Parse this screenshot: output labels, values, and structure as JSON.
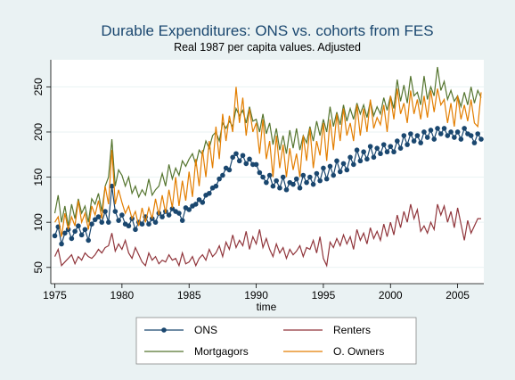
{
  "chart_data": {
    "type": "line",
    "title": "Durable Expenditures: ONS vs. cohorts from FES",
    "subtitle": "Real 1987 per capita values. Adjusted",
    "x_label": "time",
    "xlim": [
      1974.7,
      2006.95
    ],
    "xticks": [
      1975,
      1980,
      1985,
      1990,
      1995,
      2000,
      2005
    ],
    "ylim": [
      32,
      280
    ],
    "yticks": [
      50,
      100,
      150,
      200,
      250
    ],
    "grid": true,
    "legend": "bottom",
    "x": [
      1975,
      1975.25,
      1975.5,
      1975.75,
      1976,
      1976.25,
      1976.5,
      1976.75,
      1977,
      1977.25,
      1977.5,
      1977.75,
      1978,
      1978.25,
      1978.5,
      1978.75,
      1979,
      1979.25,
      1979.5,
      1979.75,
      1980,
      1980.25,
      1980.5,
      1980.75,
      1981,
      1981.25,
      1981.5,
      1981.75,
      1982,
      1982.25,
      1982.5,
      1982.75,
      1983,
      1983.25,
      1983.5,
      1983.75,
      1984,
      1984.25,
      1984.5,
      1984.75,
      1985,
      1985.25,
      1985.5,
      1985.75,
      1986,
      1986.25,
      1986.5,
      1986.75,
      1987,
      1987.25,
      1987.5,
      1987.75,
      1988,
      1988.25,
      1988.5,
      1988.75,
      1989,
      1989.25,
      1989.5,
      1989.75,
      1990,
      1990.25,
      1990.5,
      1990.75,
      1991,
      1991.25,
      1991.5,
      1991.75,
      1992,
      1992.25,
      1992.5,
      1992.75,
      1993,
      1993.25,
      1993.5,
      1993.75,
      1994,
      1994.25,
      1994.5,
      1994.75,
      1995,
      1995.25,
      1995.5,
      1995.75,
      1996,
      1996.25,
      1996.5,
      1996.75,
      1997,
      1997.25,
      1997.5,
      1997.75,
      1998,
      1998.25,
      1998.5,
      1998.75,
      1999,
      1999.25,
      1999.5,
      1999.75,
      2000,
      2000.25,
      2000.5,
      2000.75,
      2001,
      2001.25,
      2001.5,
      2001.75,
      2002,
      2002.25,
      2002.5,
      2002.75,
      2003,
      2003.25,
      2003.5,
      2003.75,
      2004,
      2004.25,
      2004.5,
      2004.75,
      2005,
      2005.25,
      2005.5,
      2005.75,
      2006,
      2006.25,
      2006.5,
      2006.75
    ],
    "series": [
      {
        "name": "ONS",
        "color": "#1a476f",
        "marker": "circle",
        "values": [
          85,
          95,
          76,
          88,
          92,
          82,
          90,
          96,
          86,
          92,
          80,
          98,
          103,
          106,
          100,
          112,
          100,
          140,
          112,
          102,
          108,
          98,
          96,
          104,
          92,
          100,
          98,
          106,
          98,
          104,
          100,
          110,
          106,
          112,
          108,
          115,
          112,
          110,
          102,
          116,
          114,
          118,
          120,
          125,
          122,
          130,
          132,
          138,
          140,
          148,
          152,
          160,
          158,
          172,
          176,
          168,
          174,
          165,
          170,
          164,
          164,
          155,
          150,
          144,
          152,
          140,
          146,
          138,
          150,
          136,
          144,
          142,
          148,
          138,
          152,
          144,
          150,
          142,
          154,
          146,
          160,
          148,
          162,
          152,
          168,
          156,
          165,
          158,
          172,
          164,
          180,
          168,
          178,
          170,
          184,
          172,
          182,
          176,
          186,
          178,
          184,
          178,
          190,
          182,
          196,
          186,
          198,
          190,
          196,
          188,
          200,
          194,
          202,
          192,
          204,
          198,
          204,
          196,
          200,
          194,
          200,
          192,
          204,
          198,
          196,
          188,
          198,
          192
        ]
      },
      {
        "name": "Renters",
        "color": "#90353b",
        "values": [
          62,
          70,
          52,
          56,
          60,
          64,
          54,
          62,
          58,
          66,
          62,
          60,
          64,
          70,
          66,
          72,
          74,
          88,
          68,
          76,
          70,
          80,
          66,
          60,
          72,
          64,
          56,
          52,
          66,
          58,
          62,
          54,
          58,
          56,
          64,
          58,
          60,
          52,
          66,
          54,
          56,
          62,
          52,
          60,
          64,
          58,
          70,
          62,
          66,
          74,
          62,
          78,
          70,
          86,
          72,
          80,
          74,
          90,
          70,
          84,
          76,
          92,
          72,
          82,
          70,
          62,
          76,
          66,
          72,
          60,
          70,
          64,
          68,
          74,
          62,
          72,
          70,
          80,
          66,
          84,
          60,
          52,
          78,
          72,
          82,
          74,
          86,
          76,
          84,
          70,
          92,
          80,
          88,
          76,
          94,
          82,
          90,
          80,
          98,
          84,
          100,
          86,
          108,
          94,
          112,
          100,
          120,
          104,
          114,
          90,
          96,
          88,
          100,
          92,
          120,
          108,
          118,
          100,
          112,
          94,
          116,
          98,
          80,
          102,
          88,
          96,
          104,
          104
        ]
      },
      {
        "name": "Mortgagors",
        "color": "#55752f",
        "values": [
          110,
          130,
          100,
          118,
          96,
          120,
          104,
          126,
          110,
          118,
          100,
          126,
          120,
          132,
          112,
          140,
          150,
          192,
          140,
          158,
          152,
          140,
          150,
          132,
          140,
          128,
          136,
          130,
          148,
          130,
          136,
          140,
          154,
          140,
          164,
          148,
          160,
          152,
          168,
          162,
          170,
          176,
          164,
          180,
          175,
          190,
          182,
          196,
          200,
          190,
          210,
          204,
          212,
          206,
          226,
          218,
          224,
          210,
          228,
          212,
          214,
          200,
          220,
          198,
          210,
          186,
          204,
          180,
          196,
          176,
          202,
          182,
          204,
          180,
          196,
          188,
          206,
          190,
          212,
          196,
          214,
          200,
          228,
          206,
          222,
          208,
          230,
          212,
          226,
          214,
          232,
          220,
          230,
          216,
          234,
          218,
          228,
          220,
          238,
          224,
          240,
          226,
          258,
          234,
          252,
          232,
          262,
          240,
          244,
          230,
          262,
          236,
          250,
          240,
          272,
          246,
          256,
          236,
          246,
          234,
          240,
          228,
          244,
          230,
          250,
          232,
          246,
          238
        ]
      },
      {
        "name": "O. Owners",
        "color": "#e37e00",
        "values": [
          100,
          106,
          84,
          110,
          92,
          106,
          96,
          124,
          100,
          110,
          92,
          118,
          108,
          124,
          104,
          140,
          120,
          180,
          120,
          136,
          122,
          110,
          118,
          104,
          112,
          96,
          116,
          100,
          116,
          104,
          126,
          108,
          130,
          110,
          136,
          116,
          150,
          118,
          146,
          124,
          156,
          128,
          170,
          140,
          180,
          150,
          190,
          160,
          206,
          170,
          220,
          190,
          218,
          200,
          250,
          210,
          238,
          196,
          226,
          200,
          210,
          176,
          214,
          170,
          190,
          150,
          196,
          160,
          186,
          150,
          182,
          158,
          176,
          150,
          196,
          168,
          204,
          160,
          190,
          174,
          210,
          168,
          214,
          180,
          220,
          190,
          226,
          196,
          210,
          190,
          230,
          196,
          226,
          200,
          236,
          204,
          216,
          208,
          230,
          200,
          240,
          214,
          248,
          220,
          232,
          210,
          246,
          220,
          236,
          214,
          240,
          216,
          246,
          222,
          248,
          230,
          236,
          210,
          232,
          206,
          240,
          214,
          230,
          212,
          236,
          210,
          206,
          244
        ]
      }
    ]
  }
}
